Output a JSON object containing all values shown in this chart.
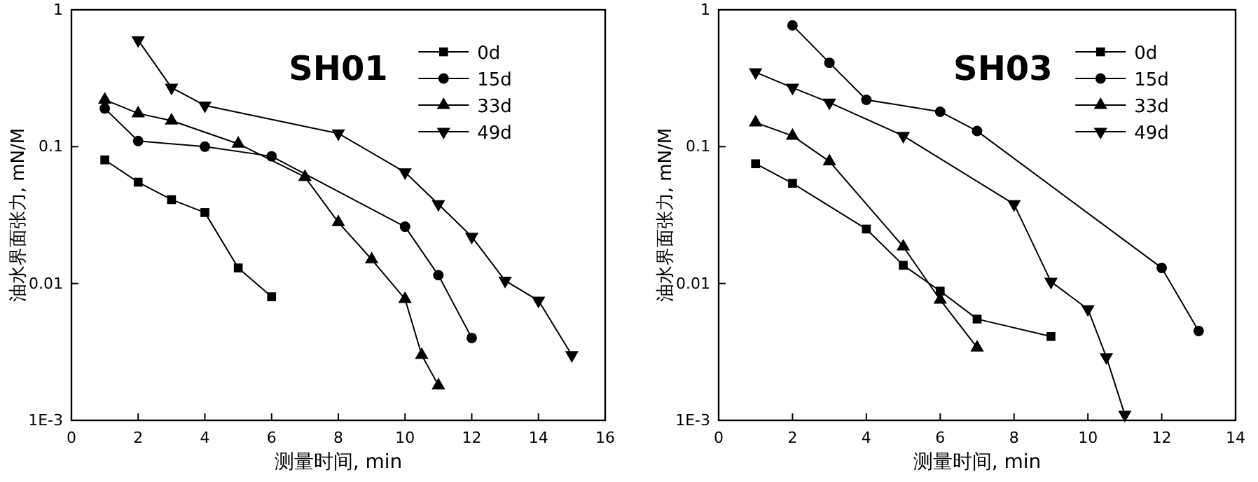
{
  "chart_data": [
    {
      "type": "line",
      "title": "SH01",
      "xlabel": "测量时间, min",
      "ylabel": "油水界面张力, mN/M",
      "log": "y",
      "xlim": [
        0,
        16
      ],
      "xticks": [
        0,
        2,
        4,
        6,
        8,
        10,
        12,
        14,
        16
      ],
      "ylim": [
        0.001,
        1
      ],
      "yticks": [
        {
          "value": 0.001,
          "label": "1E-3"
        },
        0.01,
        0.1,
        1
      ],
      "legend": "top right",
      "grid": false,
      "line_style": "solid",
      "series": [
        {
          "name": "0d",
          "color": "#000000",
          "marker": "square",
          "x": [
            1,
            2,
            3,
            4,
            5,
            6
          ],
          "values": [
            0.08,
            0.055,
            0.041,
            0.033,
            0.013,
            0.008
          ]
        },
        {
          "name": "15d",
          "color": "#000000",
          "marker": "circle",
          "x": [
            1,
            2,
            4,
            6,
            10,
            11,
            12
          ],
          "values": [
            0.19,
            0.11,
            0.1,
            0.085,
            0.026,
            0.0115,
            0.004
          ]
        },
        {
          "name": "33d",
          "color": "#000000",
          "marker": "triangle",
          "x": [
            1,
            2,
            3,
            5,
            7,
            8,
            9,
            10,
            10.5,
            11
          ],
          "values": [
            0.22,
            0.175,
            0.155,
            0.105,
            0.06,
            0.028,
            0.015,
            0.0077,
            0.003,
            0.0018
          ]
        },
        {
          "name": "49d",
          "color": "#000000",
          "marker": "triangle-down",
          "x": [
            2,
            3,
            4,
            8,
            10,
            11,
            12,
            13,
            14,
            15
          ],
          "values": [
            0.6,
            0.27,
            0.2,
            0.125,
            0.065,
            0.038,
            0.022,
            0.0105,
            0.0075,
            0.003
          ]
        }
      ]
    },
    {
      "type": "line",
      "title": "SH03",
      "xlabel": "测量时间, min",
      "ylabel": "油水界面张力, mN/M",
      "log": "y",
      "xlim": [
        0,
        14
      ],
      "xticks": [
        0,
        2,
        4,
        6,
        8,
        10,
        12,
        14
      ],
      "ylim": [
        0.001,
        1
      ],
      "yticks": [
        {
          "value": 0.001,
          "label": "1E-3"
        },
        0.01,
        0.1,
        1
      ],
      "legend": "top right",
      "grid": false,
      "line_style": "solid",
      "series": [
        {
          "name": "0d",
          "color": "#000000",
          "marker": "square",
          "x": [
            1,
            2,
            4,
            5,
            6,
            7,
            9
          ],
          "values": [
            0.075,
            0.054,
            0.025,
            0.0136,
            0.0088,
            0.0055,
            0.0041
          ]
        },
        {
          "name": "15d",
          "color": "#000000",
          "marker": "circle",
          "x": [
            2,
            3,
            4,
            6,
            7,
            12,
            13
          ],
          "values": [
            0.77,
            0.41,
            0.22,
            0.18,
            0.13,
            0.013,
            0.0045
          ]
        },
        {
          "name": "33d",
          "color": "#000000",
          "marker": "triangle",
          "x": [
            1,
            2,
            3,
            5,
            6,
            7
          ],
          "values": [
            0.15,
            0.12,
            0.078,
            0.0186,
            0.0076,
            0.0034
          ]
        },
        {
          "name": "49d",
          "color": "#000000",
          "marker": "triangle-down",
          "x": [
            1,
            2,
            3,
            5,
            8,
            9,
            10,
            10.5,
            11
          ],
          "values": [
            0.35,
            0.27,
            0.21,
            0.12,
            0.038,
            0.0103,
            0.0065,
            0.0029,
            0.0011
          ]
        }
      ]
    }
  ]
}
